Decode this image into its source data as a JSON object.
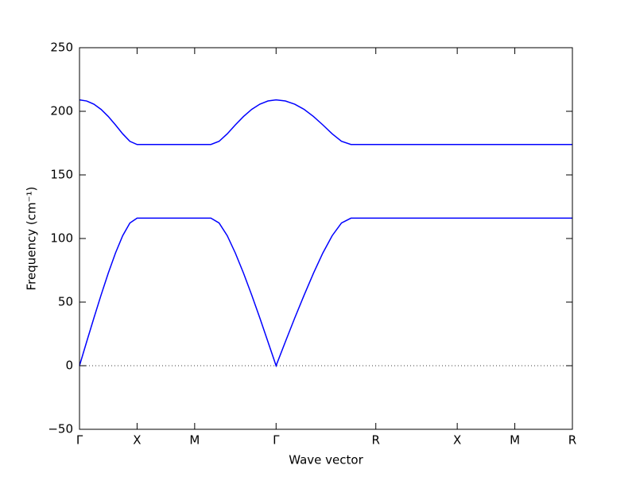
{
  "chart_data": {
    "type": "line",
    "xlabel": "Wave vector",
    "ylabel": "Frequency (cm⁻¹)",
    "x": [
      0,
      0.0625,
      0.125,
      0.1875,
      0.25,
      0.3125,
      0.375,
      0.4375,
      0.5,
      1.0,
      1.141,
      1.212,
      1.283,
      1.353,
      1.424,
      1.495,
      1.566,
      1.636,
      1.707,
      1.788,
      1.869,
      1.951,
      2.032,
      2.113,
      2.194,
      2.275,
      2.357,
      4.28
    ],
    "series": [
      {
        "color": "#0000ff",
        "values": [
          209.0,
          208.1,
          205.6,
          201.5,
          195.9,
          189.3,
          182.3,
          176.4,
          173.9,
          173.9,
          173.9,
          176.4,
          182.3,
          189.3,
          195.9,
          201.5,
          205.6,
          208.1,
          209.0,
          208.1,
          205.6,
          201.5,
          195.9,
          189.3,
          182.3,
          176.4,
          173.9,
          173.9
        ]
      },
      {
        "color": "#0000ff",
        "values": [
          0,
          18.9,
          37.5,
          55.6,
          72.8,
          88.6,
          102.2,
          112.2,
          116.0,
          116.0,
          116.0,
          112.2,
          102.2,
          88.6,
          72.8,
          55.6,
          37.5,
          18.9,
          0,
          18.9,
          37.5,
          55.6,
          72.8,
          88.6,
          102.2,
          112.2,
          116.0,
          116.0
        ]
      }
    ],
    "xlim": [
      0,
      4.28
    ],
    "xticks": [
      {
        "value": 0,
        "label": "Γ"
      },
      {
        "value": 0.5,
        "label": "X"
      },
      {
        "value": 1.0,
        "label": "M"
      },
      {
        "value": 1.707,
        "label": "Γ"
      },
      {
        "value": 2.573,
        "label": "R"
      },
      {
        "value": 3.28,
        "label": "X"
      },
      {
        "value": 3.78,
        "label": "M"
      },
      {
        "value": 4.28,
        "label": "R"
      }
    ],
    "ylim": [
      -50,
      250
    ],
    "yticks": [
      {
        "value": -50,
        "label": "−50"
      },
      0,
      50,
      100,
      150,
      200,
      250
    ],
    "zero_line": true,
    "grid": false
  }
}
